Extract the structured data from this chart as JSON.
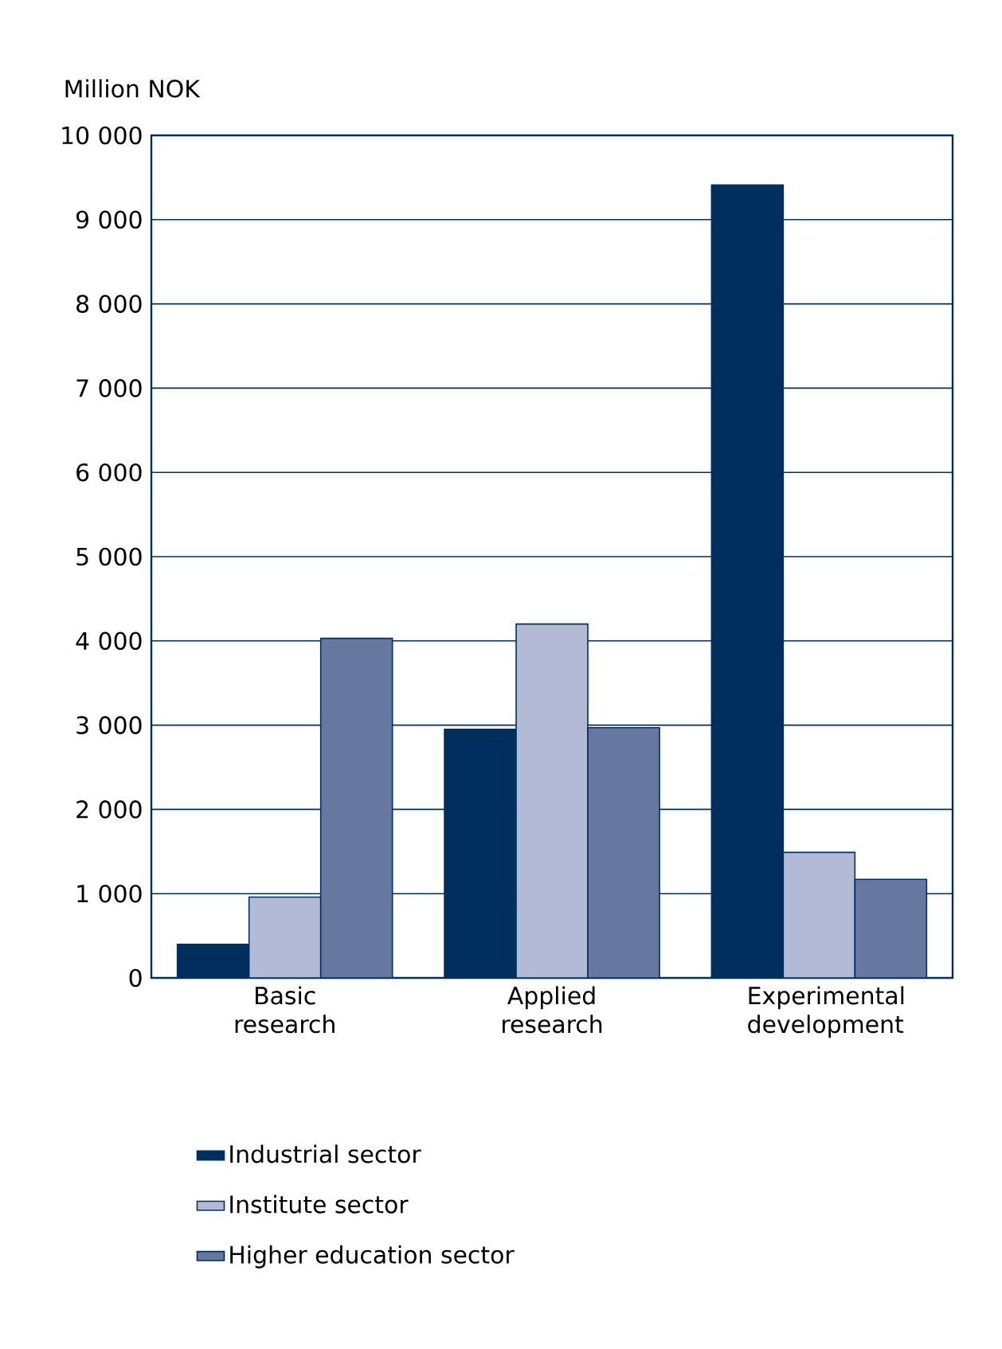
{
  "chart_data": {
    "type": "bar",
    "ylabel": "Million NOK",
    "categories": [
      "Basic research",
      "Applied research",
      "Experimental development"
    ],
    "series": [
      {
        "name": "Industrial sector",
        "color": "#002f5f",
        "values": [
          400,
          2950,
          9410
        ]
      },
      {
        "name": "Institute sector",
        "color": "#b3bad6",
        "values": [
          960,
          4200,
          1490
        ]
      },
      {
        "name": "Higher education sector",
        "color": "#6677a0",
        "values": [
          4030,
          2970,
          1170
        ]
      }
    ],
    "ylim": [
      0,
      10000
    ],
    "yticks": [
      0,
      {
        "value": 1000,
        "label": "1 000"
      },
      {
        "value": 2000,
        "label": "2 000"
      },
      {
        "value": 3000,
        "label": "3 000"
      },
      {
        "value": 4000,
        "label": "4 000"
      },
      {
        "value": 5000,
        "label": "5 000"
      },
      {
        "value": 6000,
        "label": "6 000"
      },
      {
        "value": 7000,
        "label": "7 000"
      },
      {
        "value": 8000,
        "label": "8 000"
      },
      {
        "value": 9000,
        "label": "9 000"
      },
      {
        "value": 10000,
        "label": "10 000"
      }
    ],
    "grid": "y",
    "legend": "bottom"
  }
}
